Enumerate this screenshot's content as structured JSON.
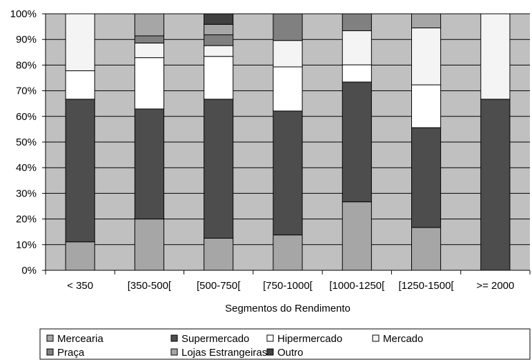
{
  "chart_data": {
    "type": "bar",
    "stacked": true,
    "percent": true,
    "title": "",
    "xlabel": "Segmentos do Rendimento",
    "ylabel": "",
    "ylim": [
      0,
      100
    ],
    "yticks": [
      "0%",
      "10%",
      "20%",
      "30%",
      "40%",
      "50%",
      "60%",
      "70%",
      "80%",
      "90%",
      "100%"
    ],
    "categories": [
      "< 350",
      "[350-500[",
      "[500-750[",
      "[750-1000[",
      "[1000-1250[",
      "[1250-1500[",
      ">= 2000"
    ],
    "grid": true,
    "legend_position": "bottom",
    "series": [
      {
        "name": "Mercearia",
        "color": "#a6a6a6",
        "values": [
          11.1,
          20.0,
          12.5,
          13.8,
          26.7,
          16.7,
          0.0
        ]
      },
      {
        "name": "Supermercado",
        "color": "#4d4d4d",
        "values": [
          55.6,
          42.9,
          54.2,
          48.3,
          46.7,
          38.9,
          66.7
        ]
      },
      {
        "name": "Hipermercado",
        "color": "#ffffff",
        "values": [
          11.1,
          20.0,
          16.7,
          17.2,
          6.7,
          16.7,
          0.0
        ]
      },
      {
        "name": "Mercado",
        "color": "#f4f4f4",
        "values": [
          22.2,
          5.7,
          4.2,
          10.3,
          13.3,
          22.2,
          33.3
        ]
      },
      {
        "name": "Praça",
        "color": "#808080",
        "values": [
          0.0,
          2.8,
          4.2,
          10.4,
          6.6,
          0.0,
          0.0
        ]
      },
      {
        "name": "Lojas Estrangeiras",
        "color": "#a6a6a6",
        "values": [
          0.0,
          8.6,
          4.1,
          0.0,
          0.0,
          5.5,
          0.0
        ]
      },
      {
        "name": "Outro",
        "color": "#404040",
        "values": [
          0.0,
          0.0,
          4.1,
          0.0,
          0.0,
          0.0,
          0.0
        ]
      }
    ]
  },
  "colors": {
    "plot_background": "#c0c0c0",
    "gridline": "#000000",
    "axis": "#000000"
  }
}
